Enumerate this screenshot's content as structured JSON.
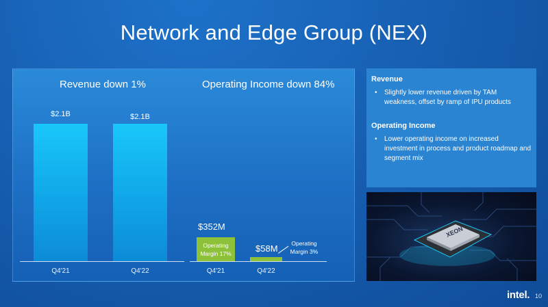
{
  "title": "Network and Edge Group (NEX)",
  "chart_data": [
    {
      "type": "bar",
      "title": "Revenue down 1%",
      "categories": [
        "Q4'21",
        "Q4'22"
      ],
      "values": [
        2.1,
        2.1
      ],
      "value_labels": [
        "$2.1B",
        "$2.1B"
      ],
      "unit": "B",
      "color": "#10a6e8"
    },
    {
      "type": "bar",
      "title": "Operating Income down 84%",
      "categories": [
        "Q4'21",
        "Q4'22"
      ],
      "values": [
        352,
        58
      ],
      "value_labels": [
        "$352M",
        "$58M"
      ],
      "unit": "M",
      "annotations": [
        "Operating Margin 17%",
        "Operating Margin 3%"
      ],
      "color": "#8ec13a"
    }
  ],
  "commentary": {
    "revenue_heading": "Revenue",
    "revenue_bullet": "Slightly lower revenue driven by TAM weakness, offset by ramp of IPU products",
    "oi_heading": "Operating Income",
    "oi_bullet": "Lower operating income on increased investment in process and product roadmap and segment mix"
  },
  "chip_image": {
    "chip_brand": "XEON"
  },
  "footer": {
    "logo": "intel.",
    "page": "10"
  }
}
